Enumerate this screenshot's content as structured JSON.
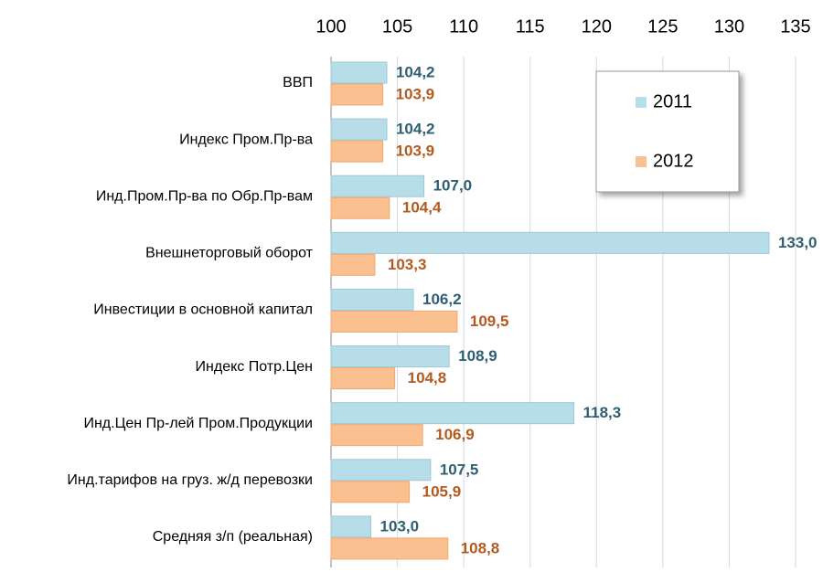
{
  "chart_data": {
    "type": "bar",
    "orientation": "horizontal",
    "categories": [
      "ВВП",
      "Индекс Пром.Пр-ва",
      "Инд.Пром.Пр-ва по Обр.Пр-вам",
      "Внешнеторговый оборот",
      "Инвестиции в основной капитал",
      "Индекс Потр.Цен",
      "Инд.Цен Пр-лей Пром.Продукции",
      "Инд.тарифов на груз. ж/д перевозки",
      "Средняя з/п (реальная)"
    ],
    "series": [
      {
        "name": "2011",
        "color": "#b7dde8",
        "label_color": "#2e5f73",
        "values": [
          104.2,
          104.2,
          107.0,
          133.0,
          106.2,
          108.9,
          118.3,
          107.5,
          103.0
        ],
        "value_labels": [
          "104,2",
          "104,2",
          "107,0",
          "133,0",
          "106,2",
          "108,9",
          "118,3",
          "107,5",
          "103,0"
        ]
      },
      {
        "name": "2012",
        "color": "#fac090",
        "label_color": "#b35a1f",
        "values": [
          103.9,
          103.9,
          104.4,
          103.3,
          109.5,
          104.8,
          106.9,
          105.9,
          108.8
        ],
        "value_labels": [
          "103,9",
          "103,9",
          "104,4",
          "103,3",
          "109,5",
          "104,8",
          "106,9",
          "105,9",
          "108,8"
        ]
      }
    ],
    "xlim": [
      100,
      135
    ],
    "xticks": [
      100,
      105,
      110,
      115,
      120,
      125,
      130,
      135
    ],
    "grid": true,
    "legend": "upper right"
  }
}
